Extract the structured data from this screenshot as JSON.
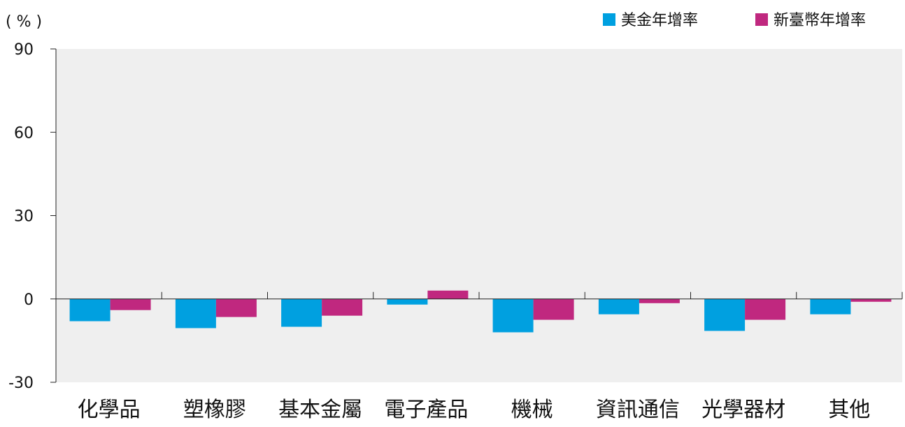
{
  "chart_data": {
    "type": "bar",
    "ylabel": "( % )",
    "categories": [
      "化學品",
      "塑橡膠",
      "基本金屬",
      "電子產品",
      "機械",
      "資訊通信",
      "光學器材",
      "其他"
    ],
    "series": [
      {
        "name": "美金年增率",
        "color": "#00a0e0",
        "values": [
          -8,
          -10.5,
          -10,
          -2,
          -12,
          -5.5,
          -11.5,
          -5.5
        ]
      },
      {
        "name": "新臺幣年增率",
        "color": "#c0287f",
        "values": [
          -4,
          -6.5,
          -6,
          3,
          -7.5,
          -1.5,
          -7.5,
          -1
        ]
      }
    ],
    "ylim": [
      -30,
      90
    ],
    "yticks": [
      90,
      60,
      30,
      0,
      -30
    ],
    "plot_background": "#efefef",
    "legend": "top-right",
    "grid": false
  }
}
